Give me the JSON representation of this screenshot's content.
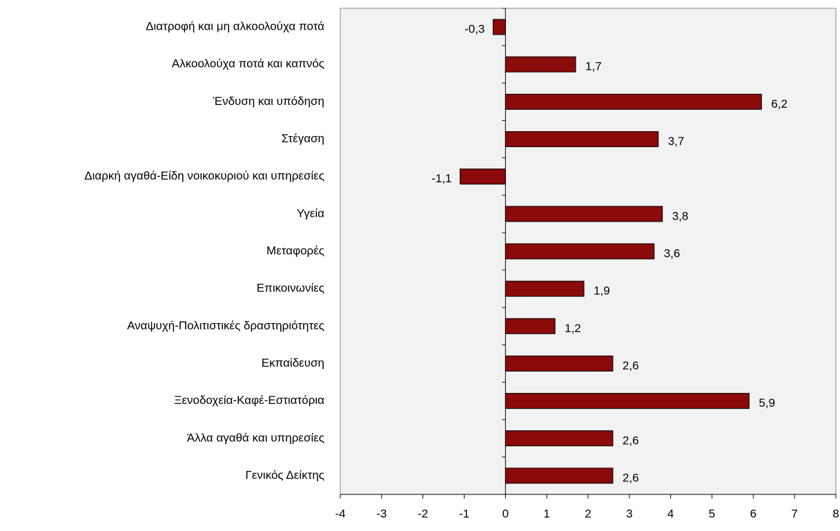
{
  "chart_data": {
    "type": "hbar",
    "categories": [
      "Διατροφή και μη αλκοολούχα ποτά",
      "Αλκοολούχα ποτά και καπνός",
      "Ένδυση και υπόδηση",
      "Στέγαση",
      "Διαρκή αγαθά-Είδη νοικοκυριού και υπηρεσίες",
      "Υγεία",
      "Μεταφορές",
      "Επικοινωνίες",
      "Αναψυχή-Πολιτιστικές δραστηριότητες",
      "Εκπαίδευση",
      "Ξενοδοχεία-Καφέ-Εστιατόρια",
      "Άλλα αγαθά και υπηρεσίες",
      "Γενικός Δείκτης"
    ],
    "values": [
      -0.3,
      1.7,
      6.2,
      3.7,
      -1.1,
      3.8,
      3.6,
      1.9,
      1.2,
      2.6,
      5.9,
      2.6,
      2.6
    ],
    "value_labels": [
      "-0,3",
      "1,7",
      "6,2",
      "3,7",
      "-1,1",
      "3,8",
      "3,6",
      "1,9",
      "1,2",
      "2,6",
      "5,9",
      "2,6",
      "2,6"
    ],
    "color": "#8b0a0a",
    "xlim": [
      -4,
      8
    ],
    "xticks": [
      -4,
      -3,
      -2,
      -1,
      0,
      1,
      2,
      3,
      4,
      5,
      6,
      7,
      8
    ]
  }
}
